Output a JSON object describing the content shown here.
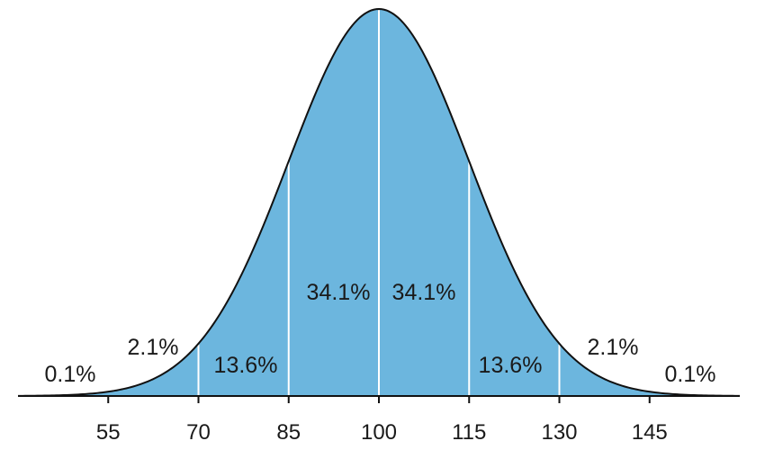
{
  "chart_data": {
    "type": "area",
    "title": "",
    "xlabel": "",
    "ylabel": "",
    "distribution": "normal",
    "mean": 100,
    "sd": 15,
    "xlim": [
      40,
      160
    ],
    "x_ticks": [
      55,
      70,
      85,
      100,
      115,
      130,
      145
    ],
    "tick_labels": [
      "55",
      "70",
      "85",
      "100",
      "115",
      "130",
      "145"
    ],
    "sd_boundaries": [
      70,
      85,
      100,
      115,
      130
    ],
    "segments": [
      {
        "label": "0.1%",
        "value": 0.1,
        "x_range": [
          40,
          55
        ]
      },
      {
        "label": "2.1%",
        "value": 2.1,
        "x_range": [
          55,
          70
        ]
      },
      {
        "label": "13.6%",
        "value": 13.6,
        "x_range": [
          70,
          85
        ]
      },
      {
        "label": "34.1%",
        "value": 34.1,
        "x_range": [
          85,
          100
        ]
      },
      {
        "label": "34.1%",
        "value": 34.1,
        "x_range": [
          100,
          115
        ]
      },
      {
        "label": "13.6%",
        "value": 13.6,
        "x_range": [
          115,
          130
        ]
      },
      {
        "label": "2.1%",
        "value": 2.1,
        "x_range": [
          130,
          145
        ]
      },
      {
        "label": "0.1%",
        "value": 0.1,
        "x_range": [
          145,
          160
        ]
      }
    ],
    "grid": false,
    "colors": {
      "fill": "#6cb6de",
      "outline": "#111111",
      "divider": "#ffffff",
      "axis": "#111111"
    }
  }
}
